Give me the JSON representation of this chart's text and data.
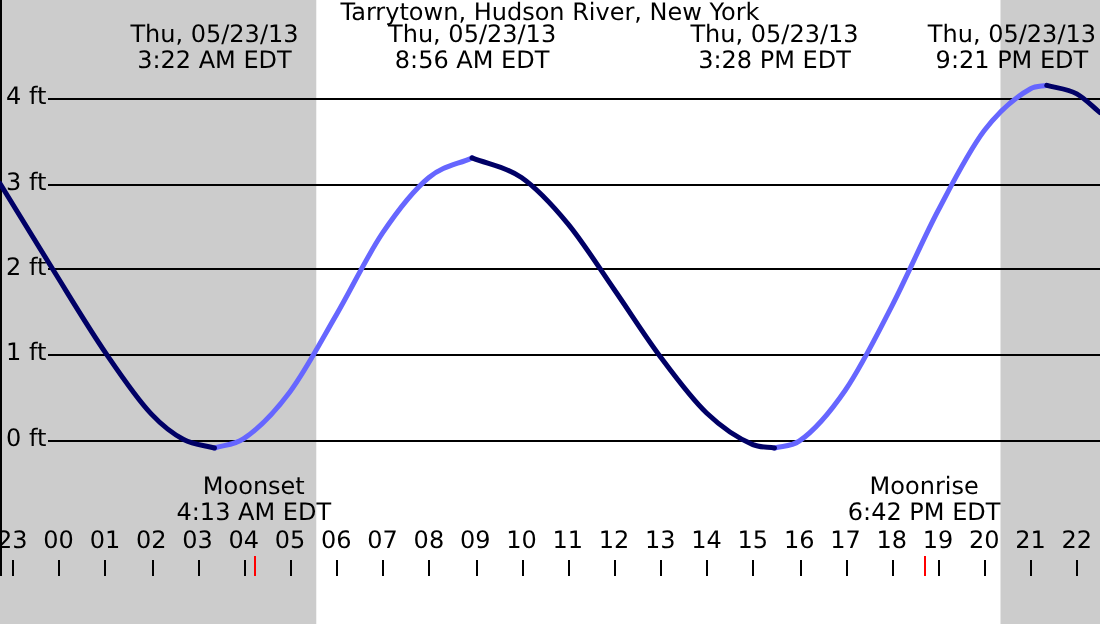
{
  "chart_data": {
    "type": "line",
    "title": "Tarrytown, Hudson River, New York",
    "series": [
      {
        "color": "#000066",
        "x": [
          "--05-22T22:44",
          "--05-22T23:52",
          "--05-23T01:02",
          "--05-23T02:00",
          "--05-23T02:42",
          "--05-23T03:22",
          "--05-23T03:23",
          "--05-23T08:56",
          "--05-23T10:00",
          "--05-23T11:00",
          "--05-23T12:00",
          "--05-23T13:00",
          "--05-23T14:00",
          "--05-23T15:00",
          "--05-23T15:28",
          "--05-23T15:29",
          "--05-23T21:21",
          "--05-23T22:00",
          "--05-23T22:30"
        ],
        "values": [
          3.0,
          2.0,
          1.0,
          0.3,
          0.0,
          -0.1,
          null,
          3.3,
          3.07,
          2.53,
          1.76,
          0.97,
          0.31,
          -0.06,
          -0.1,
          null,
          4.15,
          4.05,
          3.83
        ]
      },
      {
        "color": "#6666ff",
        "x": [
          "--05-23T03:22",
          "--05-23T04:00",
          "--05-23T05:00",
          "--05-23T06:00",
          "--05-23T07:00",
          "--05-23T08:00",
          "--05-23T08:56",
          "--05-23T08:57",
          "--05-23T15:28",
          "--05-23T16:00",
          "--05-23T17:00",
          "--05-23T18:00",
          "--05-23T19:00",
          "--05-23T20:00",
          "--05-23T21:00",
          "--05-23T21:21"
        ],
        "values": [
          -0.1,
          0.01,
          0.56,
          1.46,
          2.42,
          3.07,
          3.3,
          null,
          -0.1,
          -0.02,
          0.58,
          1.56,
          2.68,
          3.62,
          4.11,
          4.15
        ]
      }
    ],
    "xlim": [
      "--05-22T22:44",
      "--05-23T22:30"
    ],
    "xticks": [
      {
        "value": "--05-22T23:00",
        "label": "23"
      },
      {
        "value": "--05-23T00:00",
        "label": "00"
      },
      {
        "value": "--05-23T01:00",
        "label": "01"
      },
      {
        "value": "--05-23T02:00",
        "label": "02"
      },
      {
        "value": "--05-23T03:00",
        "label": "03"
      },
      {
        "value": "--05-23T04:00",
        "label": "04"
      },
      {
        "value": "--05-23T05:00",
        "label": "05"
      },
      {
        "value": "--05-23T06:00",
        "label": "06"
      },
      {
        "value": "--05-23T07:00",
        "label": "07"
      },
      {
        "value": "--05-23T08:00",
        "label": "08"
      },
      {
        "value": "--05-23T09:00",
        "label": "09"
      },
      {
        "value": "--05-23T10:00",
        "label": "10"
      },
      {
        "value": "--05-23T11:00",
        "label": "11"
      },
      {
        "value": "--05-23T12:00",
        "label": "12"
      },
      {
        "value": "--05-23T13:00",
        "label": "13"
      },
      {
        "value": "--05-23T14:00",
        "label": "14"
      },
      {
        "value": "--05-23T15:00",
        "label": "15"
      },
      {
        "value": "--05-23T16:00",
        "label": "16"
      },
      {
        "value": "--05-23T17:00",
        "label": "17"
      },
      {
        "value": "--05-23T18:00",
        "label": "18"
      },
      {
        "value": "--05-23T19:00",
        "label": "19"
      },
      {
        "value": "--05-23T20:00",
        "label": "20"
      },
      {
        "value": "--05-23T21:00",
        "label": "21"
      },
      {
        "value": "--05-23T22:00",
        "label": "22"
      }
    ],
    "ylim": [
      -1.6,
      5.15
    ],
    "yticks": [
      {
        "value": 0,
        "label": "0 ft"
      },
      {
        "value": 1,
        "label": "1 ft"
      },
      {
        "value": 2,
        "label": "2 ft"
      },
      {
        "value": 3,
        "label": "3 ft"
      },
      {
        "value": 4,
        "label": "4 ft"
      }
    ],
    "grid": "y",
    "legend": false,
    "marker": "none",
    "line_style": "solid",
    "bands": [
      {
        "axis": "x",
        "from": "--05-22T22:44",
        "to": "--05-23T05:34",
        "color": "#cccccc"
      },
      {
        "axis": "x",
        "from": "--05-23T20:21",
        "to": "--05-23T22:30",
        "color": "#cccccc"
      }
    ],
    "ref_lines": [
      {
        "axis": "x",
        "value": "--05-23T04:13",
        "label": "Moonset\n4:13 AM EDT",
        "color": "#ff0000"
      },
      {
        "axis": "x",
        "value": "--05-23T18:42",
        "label": "Moonrise\n6:42 PM EDT",
        "color": "#ff0000"
      }
    ],
    "annotations": [
      "Thu, 05/23/13\n3:22 AM EDT",
      "Thu, 05/23/13\n8:56 AM EDT",
      "Thu, 05/23/13\n3:28 PM EDT",
      "Thu, 05/23/13\n9:21 PM EDT"
    ]
  }
}
